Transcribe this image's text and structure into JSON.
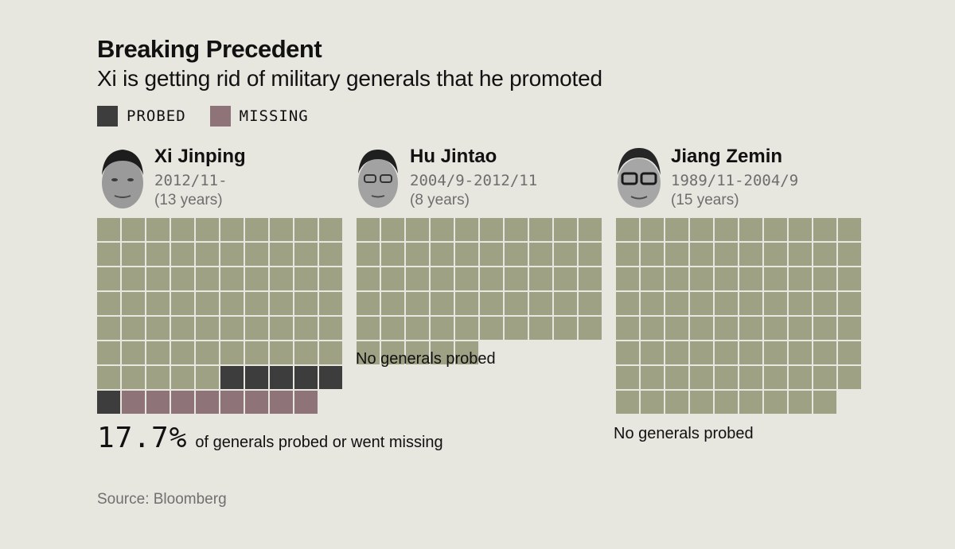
{
  "header": {
    "title": "Breaking Precedent",
    "subtitle": "Xi is getting rid of military generals that he promoted"
  },
  "legend": [
    {
      "label": "PROBED",
      "color": "#3d3d3d"
    },
    {
      "label": "MISSING",
      "color": "#8e7379"
    }
  ],
  "colors": {
    "promoted": "#9fa185",
    "probed": "#3d3d3d",
    "missing": "#8e7379"
  },
  "chart_data": {
    "type": "waffle",
    "title": "Breaking Precedent",
    "subtitle": "Xi is getting rid of military generals that he promoted",
    "unit": "generals",
    "columns": 10,
    "series": [
      {
        "name": "Xi Jinping",
        "term": "2012/11-",
        "tenure": "(13 years)",
        "total": 79,
        "probed": 6,
        "missing": 8,
        "share_label": "17.7%",
        "share_text": "of generals probed or went missing",
        "note": ""
      },
      {
        "name": "Hu Jintao",
        "term": "2004/9-2012/11",
        "tenure": "(8 years)",
        "total": 55,
        "probed": 0,
        "missing": 0,
        "share_label": "",
        "share_text": "",
        "note": "No generals probed"
      },
      {
        "name": "Jiang Zemin",
        "term": "1989/11-2004/9",
        "tenure": "(15 years)",
        "total": 79,
        "probed": 0,
        "missing": 0,
        "share_label": "",
        "share_text": "",
        "note": "No generals probed"
      }
    ]
  },
  "footer": {
    "source": "Source: Bloomberg"
  }
}
